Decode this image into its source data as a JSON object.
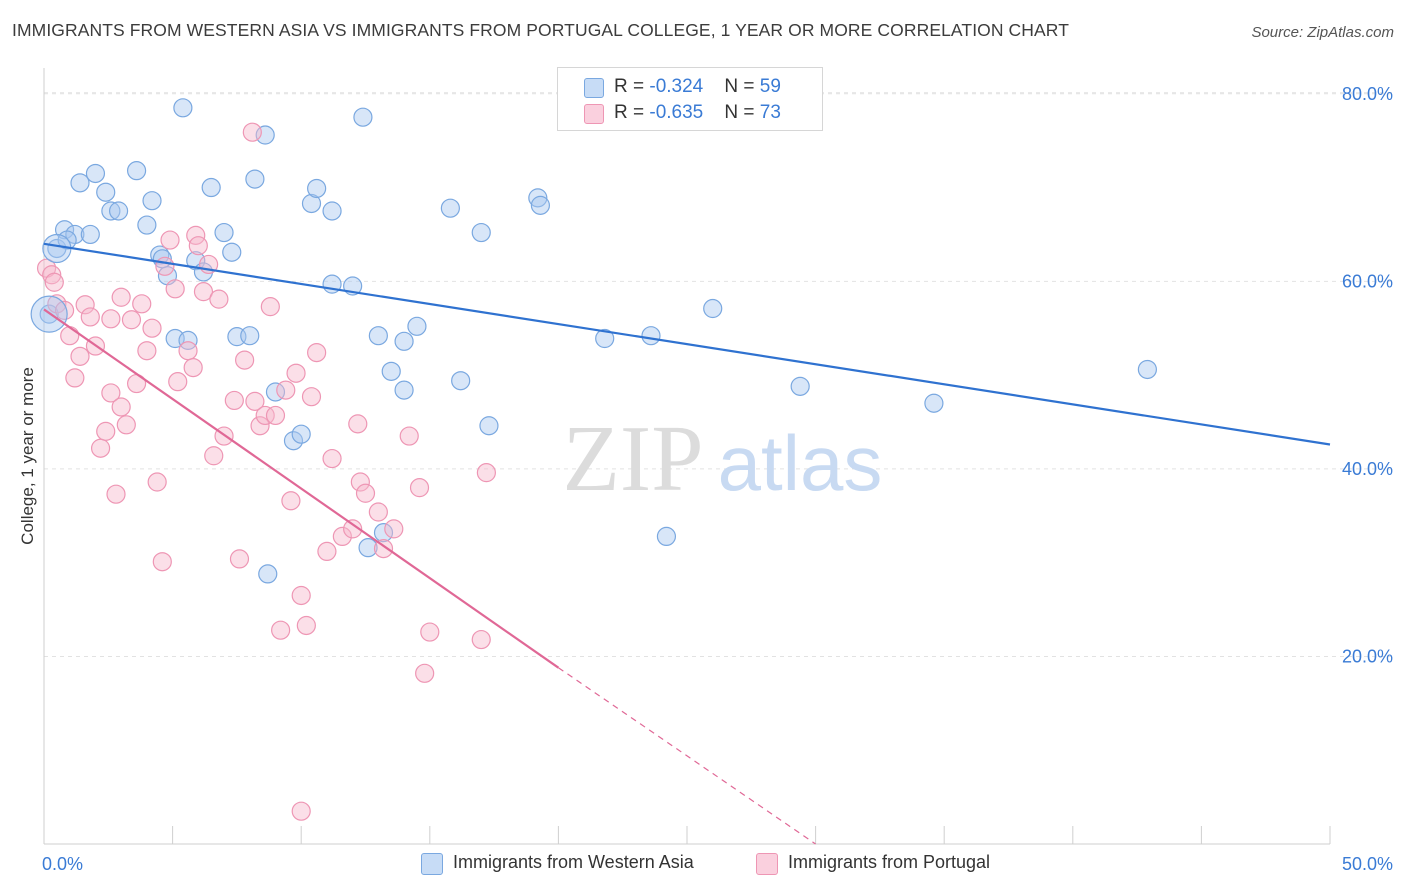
{
  "title": "IMMIGRANTS FROM WESTERN ASIA VS IMMIGRANTS FROM PORTUGAL COLLEGE, 1 YEAR OR MORE CORRELATION CHART",
  "source": "Source: ZipAtlas.com",
  "watermark": {
    "zip": "ZIP",
    "atlas": "atlas"
  },
  "colors": {
    "blue_fill": "#a8c8f0",
    "blue_stroke": "#7aa8e0",
    "blue_line": "#2f72d0",
    "pink_fill": "#f6b8cc",
    "pink_stroke": "#ee96b4",
    "pink_line": "#e06896",
    "tick_label": "#3a7bd5",
    "grid": "#e2e2e2"
  },
  "legend_top": [
    {
      "r_label": "R = ",
      "r_value": "-0.324",
      "n_label": "N = ",
      "n_value": "59"
    },
    {
      "r_label": "R = ",
      "r_value": "-0.635",
      "n_label": "N = ",
      "n_value": "73"
    }
  ],
  "chart_data": {
    "type": "scatter",
    "ylabel": "College, 1 year or more",
    "xlim": [
      0,
      50
    ],
    "ylim": [
      0,
      82
    ],
    "x_tick_labels": [
      {
        "value": 0,
        "label": "0.0%"
      },
      {
        "value": 50,
        "label": "50.0%"
      }
    ],
    "y_tick_labels": [
      {
        "value": 20,
        "label": "20.0%"
      },
      {
        "value": 40,
        "label": "40.0%"
      },
      {
        "value": 60,
        "label": "60.0%"
      },
      {
        "value": 80,
        "label": "80.0%"
      }
    ],
    "grid": true,
    "legend_position": "bottom",
    "series": [
      {
        "name": "Immigrants from Western Asia",
        "color": "blue",
        "trend": {
          "x": [
            0,
            50
          ],
          "y": [
            64.0,
            42.6
          ],
          "dashed_to": null
        },
        "points": [
          [
            0.2,
            56.5
          ],
          [
            0.5,
            63.5
          ],
          [
            0.8,
            65.5
          ],
          [
            1.2,
            65.0
          ],
          [
            1.4,
            70.5
          ],
          [
            2.0,
            71.5
          ],
          [
            2.4,
            69.5
          ],
          [
            2.6,
            67.5
          ],
          [
            2.9,
            67.5
          ],
          [
            3.6,
            71.8
          ],
          [
            4.0,
            66.0
          ],
          [
            4.2,
            68.6
          ],
          [
            4.5,
            62.8
          ],
          [
            4.6,
            62.4
          ],
          [
            4.8,
            60.6
          ],
          [
            5.1,
            53.9
          ],
          [
            5.6,
            53.7
          ],
          [
            5.4,
            78.5
          ],
          [
            5.9,
            62.2
          ],
          [
            6.2,
            61.0
          ],
          [
            6.5,
            70.0
          ],
          [
            7.0,
            65.2
          ],
          [
            7.3,
            63.1
          ],
          [
            7.5,
            54.1
          ],
          [
            8.0,
            54.2
          ],
          [
            8.2,
            70.9
          ],
          [
            8.6,
            75.6
          ],
          [
            9.0,
            48.2
          ],
          [
            9.7,
            43.0
          ],
          [
            10.0,
            43.7
          ],
          [
            10.4,
            68.3
          ],
          [
            10.6,
            69.9
          ],
          [
            11.2,
            59.7
          ],
          [
            11.2,
            67.5
          ],
          [
            12.0,
            59.5
          ],
          [
            12.4,
            77.5
          ],
          [
            12.6,
            31.6
          ],
          [
            13.0,
            54.2
          ],
          [
            13.2,
            33.2
          ],
          [
            13.5,
            50.4
          ],
          [
            14.0,
            48.4
          ],
          [
            14.0,
            53.6
          ],
          [
            14.5,
            55.2
          ],
          [
            15.8,
            67.8
          ],
          [
            16.2,
            49.4
          ],
          [
            17.0,
            65.2
          ],
          [
            17.3,
            44.6
          ],
          [
            19.2,
            68.9
          ],
          [
            19.3,
            68.1
          ],
          [
            21.8,
            53.9
          ],
          [
            23.6,
            54.2
          ],
          [
            24.2,
            32.8
          ],
          [
            26.0,
            57.1
          ],
          [
            29.4,
            48.8
          ],
          [
            34.6,
            47.0
          ],
          [
            42.9,
            50.6
          ],
          [
            8.7,
            28.8
          ],
          [
            0.9,
            64.4
          ],
          [
            1.8,
            65.0
          ]
        ]
      },
      {
        "name": "Immigrants from Portugal",
        "color": "pink",
        "trend": {
          "x": [
            0,
            20
          ],
          "y": [
            57.0,
            18.8
          ],
          "dashed_to": {
            "x": 30,
            "y": 0
          }
        },
        "points": [
          [
            0.1,
            61.4
          ],
          [
            0.3,
            60.7
          ],
          [
            0.4,
            59.9
          ],
          [
            0.5,
            57.6
          ],
          [
            0.8,
            56.9
          ],
          [
            1.0,
            54.2
          ],
          [
            1.2,
            49.7
          ],
          [
            1.6,
            57.5
          ],
          [
            1.8,
            56.2
          ],
          [
            2.0,
            53.1
          ],
          [
            2.2,
            42.2
          ],
          [
            2.4,
            44.0
          ],
          [
            2.6,
            56.0
          ],
          [
            2.6,
            48.1
          ],
          [
            2.8,
            37.3
          ],
          [
            3.0,
            46.6
          ],
          [
            3.2,
            44.7
          ],
          [
            3.4,
            55.9
          ],
          [
            3.6,
            49.1
          ],
          [
            3.8,
            57.6
          ],
          [
            4.0,
            52.6
          ],
          [
            4.2,
            55.0
          ],
          [
            4.4,
            38.6
          ],
          [
            4.6,
            30.1
          ],
          [
            4.7,
            61.6
          ],
          [
            4.9,
            64.4
          ],
          [
            5.1,
            59.2
          ],
          [
            5.2,
            49.3
          ],
          [
            5.6,
            52.6
          ],
          [
            5.8,
            50.8
          ],
          [
            5.9,
            64.9
          ],
          [
            6.2,
            58.9
          ],
          [
            6.4,
            61.8
          ],
          [
            6.6,
            41.4
          ],
          [
            6.8,
            58.1
          ],
          [
            7.0,
            43.5
          ],
          [
            7.4,
            47.3
          ],
          [
            7.6,
            30.4
          ],
          [
            7.8,
            51.6
          ],
          [
            8.1,
            75.9
          ],
          [
            8.2,
            47.2
          ],
          [
            8.4,
            44.6
          ],
          [
            8.6,
            45.7
          ],
          [
            8.8,
            57.3
          ],
          [
            9.0,
            45.7
          ],
          [
            9.2,
            22.8
          ],
          [
            9.4,
            48.4
          ],
          [
            9.6,
            36.6
          ],
          [
            9.8,
            50.2
          ],
          [
            10.0,
            26.5
          ],
          [
            10.2,
            23.3
          ],
          [
            10.4,
            47.7
          ],
          [
            10.6,
            52.4
          ],
          [
            11.0,
            31.2
          ],
          [
            11.2,
            41.1
          ],
          [
            11.6,
            32.8
          ],
          [
            12.0,
            33.6
          ],
          [
            12.2,
            44.8
          ],
          [
            12.3,
            38.6
          ],
          [
            12.5,
            37.4
          ],
          [
            13.0,
            35.4
          ],
          [
            13.2,
            31.5
          ],
          [
            13.6,
            33.6
          ],
          [
            14.2,
            43.5
          ],
          [
            14.6,
            38.0
          ],
          [
            14.8,
            18.2
          ],
          [
            15.0,
            22.6
          ],
          [
            17.0,
            21.8
          ],
          [
            17.2,
            39.6
          ],
          [
            10.0,
            3.5
          ],
          [
            6.0,
            63.8
          ],
          [
            1.4,
            52.0
          ],
          [
            3.0,
            58.3
          ]
        ]
      }
    ]
  }
}
